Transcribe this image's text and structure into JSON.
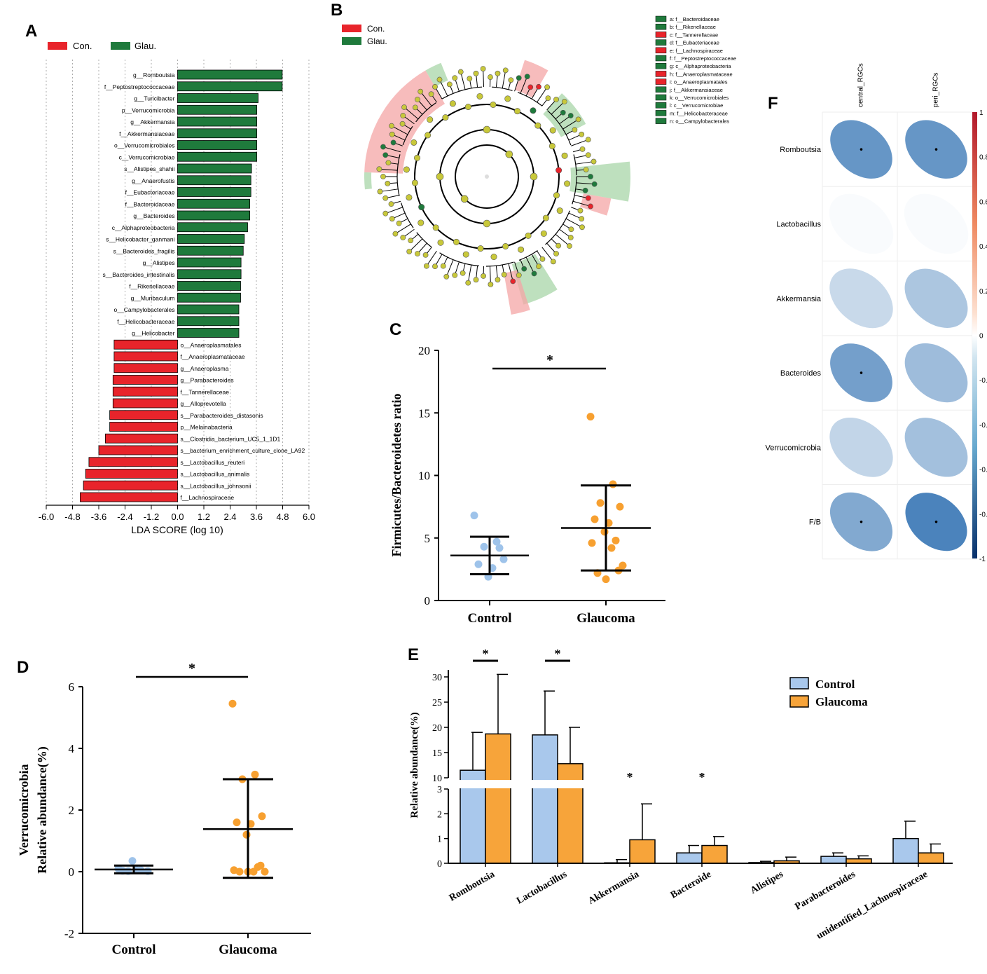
{
  "panel_letters": {
    "a": "A",
    "b": "B",
    "c": "C",
    "d": "D",
    "e": "E",
    "f": "F"
  },
  "colors": {
    "con": "#e8242b",
    "glau": "#1f7a3c",
    "control_dot": "#9ec3ea",
    "glaucoma_dot": "#f7a030",
    "control_bar": "#a9c8ec",
    "glaucoma_bar": "#f7a43a",
    "black": "#000000"
  },
  "chart_data": [
    {
      "id": "A",
      "type": "bar",
      "orientation": "horizontal",
      "legend": [
        {
          "name": "Con.",
          "color": "#e8242b"
        },
        {
          "name": "Glau.",
          "color": "#1f7a3c"
        }
      ],
      "xlabel": "LDA SCORE (log 10)",
      "xlim": [
        -6.0,
        6.0
      ],
      "xticks": [
        "-6.0",
        "-4.8",
        "-3.6",
        "-2.4",
        "-1.2",
        "0.0",
        "1.2",
        "2.4",
        "3.6",
        "4.8",
        "6.0"
      ],
      "xtick_values": [
        -6.0,
        -4.8,
        -3.6,
        -2.4,
        -1.2,
        0.0,
        1.2,
        2.4,
        3.6,
        4.8,
        6.0
      ],
      "categories": [
        "g__Romboutsia",
        "f__Peptostreptococcaceae",
        "g__Turicibacter",
        "p__Verrucomicrobia",
        "g__Akkermansia",
        "f__Akkermansiaceae",
        "o__Verrucomicrobiales",
        "c__Verrucomicrobiae",
        "s__Alistipes_shahii",
        "g__Anaerofustis",
        "f__Eubacteriaceae",
        "f__Bacteroidaceae",
        "g__Bacteroides",
        "c__Alphaproteobacteria",
        "s__Helicobacter_ganmani",
        "s__Bacteroides_fragilis",
        "g__Alistipes",
        "s__Bacteroides_intestinalis",
        "f__Rikenellaceae",
        "g__Muribaculum",
        "o__Campylobacterales",
        "f__Helicobacteraceae",
        "g__Helicobacter",
        "o__Anaeroplasmatales",
        "f__Anaeroplasmataceae",
        "g__Anaeroplasma",
        "g__Parabacteroides",
        "f__Tannerellaceae",
        "g__Alloprevotella",
        "s__Parabacteroides_distasonis",
        "p__Melainabacteria",
        "s__Clostridia_bacterium_UC5_1_1D1",
        "s__bacterium_enrichment_culture_clone_LA92",
        "s__Lactobacillus_reuteri",
        "s__Lactobacillus_animalis",
        "s__Lactobacillus_johnsonii",
        "f__Lachnospiraceae"
      ],
      "values": [
        4.78,
        4.78,
        3.68,
        3.62,
        3.62,
        3.62,
        3.62,
        3.62,
        3.38,
        3.35,
        3.35,
        3.3,
        3.3,
        3.2,
        3.05,
        3.0,
        2.9,
        2.9,
        2.88,
        2.88,
        2.8,
        2.8,
        2.8,
        -2.9,
        -2.9,
        -2.9,
        -2.95,
        -2.95,
        -2.95,
        -3.1,
        -3.1,
        -3.3,
        -3.6,
        -4.05,
        -4.2,
        -4.3,
        -4.45
      ],
      "groups": [
        "Glau.",
        "Glau.",
        "Glau.",
        "Glau.",
        "Glau.",
        "Glau.",
        "Glau.",
        "Glau.",
        "Glau.",
        "Glau.",
        "Glau.",
        "Glau.",
        "Glau.",
        "Glau.",
        "Glau.",
        "Glau.",
        "Glau.",
        "Glau.",
        "Glau.",
        "Glau.",
        "Glau.",
        "Glau.",
        "Glau.",
        "Con.",
        "Con.",
        "Con.",
        "Con.",
        "Con.",
        "Con.",
        "Con.",
        "Con.",
        "Con.",
        "Con.",
        "Con.",
        "Con.",
        "Con.",
        "Con."
      ]
    },
    {
      "id": "B",
      "type": "other",
      "description_kind": "cladogram",
      "legend": [
        {
          "name": "Con.",
          "color": "#e8242b"
        },
        {
          "name": "Glau.",
          "color": "#1f7a3c"
        }
      ],
      "key": [
        {
          "label": "a: f__Bacteroidaceae",
          "group": "Glau."
        },
        {
          "label": "b: f__Rikenellaceae",
          "group": "Glau."
        },
        {
          "label": "c: f__Tannerellaceae",
          "group": "Con."
        },
        {
          "label": "d: f__Eubacteriaceae",
          "group": "Glau."
        },
        {
          "label": "e: f__Lachnospiraceae",
          "group": "Con."
        },
        {
          "label": "f: f__Peptostreptococcaceae",
          "group": "Glau."
        },
        {
          "label": "g: c__Alphaproteobacteria",
          "group": "Glau."
        },
        {
          "label": "h: f__Anaeroplasmataceae",
          "group": "Con."
        },
        {
          "label": "i: o__Anaeroplasmatales",
          "group": "Con."
        },
        {
          "label": "j: f__Akkermansiaceae",
          "group": "Glau."
        },
        {
          "label": "k: o__Verrucomicrobiales",
          "group": "Glau."
        },
        {
          "label": "l: c__Verrucomicrobiae",
          "group": "Glau."
        },
        {
          "label": "m: f__Helicobacteraceae",
          "group": "Glau."
        },
        {
          "label": "n: o__Campylobacterales",
          "group": "Glau."
        }
      ]
    },
    {
      "id": "C",
      "type": "scatter",
      "ylabel": "Firmicutes/Bacteroidetes ratio",
      "ylim": [
        0,
        20
      ],
      "yticks": [
        "0",
        "5",
        "10",
        "15",
        "20"
      ],
      "ytick_values": [
        0,
        5,
        10,
        15,
        20
      ],
      "categories": [
        "Control",
        "Glaucoma"
      ],
      "significance": "*",
      "series": [
        {
          "name": "Control",
          "values": [
            6.8,
            4.7,
            4.3,
            3.3,
            2.9,
            2.6,
            1.9,
            4.2
          ],
          "mean": 3.6,
          "sd_low": 2.1,
          "sd_high": 5.1
        },
        {
          "name": "Glaucoma",
          "values": [
            14.7,
            9.3,
            7.8,
            7.5,
            6.5,
            6.2,
            5.5,
            4.8,
            4.6,
            4.2,
            2.8,
            2.2,
            1.7,
            2.4
          ],
          "mean": 5.8,
          "sd_low": 2.4,
          "sd_high": 9.2
        }
      ]
    },
    {
      "id": "D",
      "type": "scatter",
      "ylabel_lines": [
        "Verrucomicrobia",
        "Relative abundance(%)"
      ],
      "ylim": [
        -2,
        6
      ],
      "yticks": [
        "-2",
        "0",
        "2",
        "4",
        "6"
      ],
      "ytick_values": [
        -2,
        0,
        2,
        4,
        6
      ],
      "categories": [
        "Control",
        "Glaucoma"
      ],
      "significance": "*",
      "series": [
        {
          "name": "Control",
          "values": [
            0.1,
            0.05,
            0.02,
            0.02,
            0.03,
            0.05,
            0.35
          ],
          "mean": 0.07,
          "sd_low": -0.05,
          "sd_high": 0.2
        },
        {
          "name": "Glaucoma",
          "values": [
            5.45,
            3.15,
            3.0,
            1.8,
            1.6,
            1.55,
            1.2,
            0.15,
            0.05,
            0.0,
            0.0,
            0.0,
            0.0,
            0.2
          ],
          "mean": 1.38,
          "sd_low": -0.2,
          "sd_high": 3.0
        }
      ]
    },
    {
      "id": "E",
      "type": "bar",
      "ylabel": "Relative abundance(%)",
      "broken_axis": {
        "lower": [
          0,
          3
        ],
        "upper": [
          10,
          30
        ]
      },
      "yticks_lower": [
        "0",
        "1",
        "2",
        "3"
      ],
      "ytick_values_lower": [
        0,
        1,
        2,
        3
      ],
      "yticks_upper": [
        "10",
        "15",
        "20",
        "25",
        "30"
      ],
      "ytick_values_upper": [
        10,
        15,
        20,
        25,
        30
      ],
      "categories": [
        "Romboutsia",
        "Lactobacillus",
        "Akkermansia",
        "Bacteroide",
        "Alistipes",
        "Parabacteroides",
        "unidentified_Lachnospiraceae"
      ],
      "significant": [
        true,
        true,
        true,
        true,
        false,
        false,
        false
      ],
      "significance_mark": "*",
      "series": [
        {
          "name": "Control",
          "values": [
            11.5,
            18.5,
            0.02,
            0.42,
            0.03,
            0.28,
            1.0
          ],
          "errors": [
            19.0,
            27.2,
            0.15,
            0.72,
            0.08,
            0.42,
            1.7
          ]
        },
        {
          "name": "Glaucoma",
          "values": [
            18.7,
            12.8,
            0.95,
            0.72,
            0.1,
            0.18,
            0.42
          ],
          "errors": [
            30.5,
            20.0,
            2.4,
            1.08,
            0.25,
            0.3,
            0.78
          ]
        }
      ]
    },
    {
      "id": "F",
      "type": "heatmap",
      "columns": [
        "central_RGCs",
        "peri_RGCs"
      ],
      "rows": [
        "Romboutsia",
        "Lactobacillus",
        "Akkermansia",
        "Bacteroides",
        "Verrucomicrobia",
        "F/B"
      ],
      "values": [
        [
          -0.55,
          -0.55
        ],
        [
          -0.02,
          -0.02
        ],
        [
          -0.2,
          -0.3
        ],
        [
          -0.5,
          -0.35
        ],
        [
          -0.22,
          -0.33
        ],
        [
          -0.45,
          -0.65
        ]
      ],
      "significant": [
        [
          true,
          true
        ],
        [
          false,
          false
        ],
        [
          false,
          false
        ],
        [
          true,
          false
        ],
        [
          false,
          false
        ],
        [
          true,
          true
        ]
      ],
      "colorbar_ticks": [
        "1",
        "0.8",
        "0.6",
        "0.4",
        "0.2",
        "0",
        "-0.2",
        "-0.4",
        "-0.6",
        "-0.8",
        "-1"
      ],
      "colorbar_tick_values": [
        1,
        0.8,
        0.6,
        0.4,
        0.2,
        0,
        -0.2,
        -0.4,
        -0.6,
        -0.8,
        -1
      ]
    }
  ]
}
